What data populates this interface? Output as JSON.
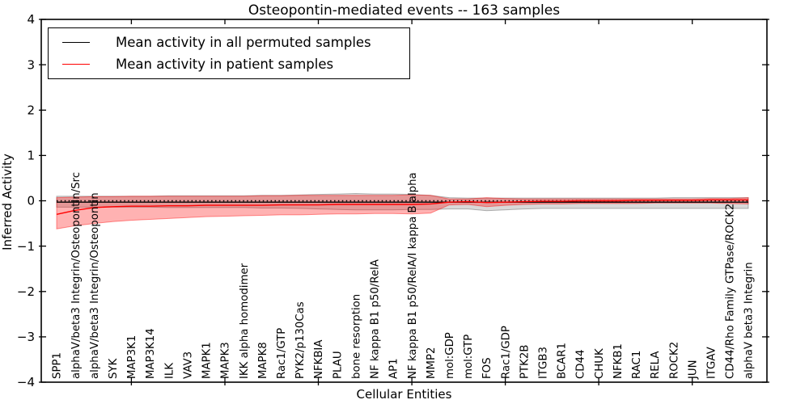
{
  "chart_data": {
    "type": "line",
    "title": "Osteopontin-mediated events -- 163 samples",
    "xlabel": "Cellular Entities",
    "ylabel": "Inferred Activity",
    "ylim": [
      -4,
      4
    ],
    "yticks": [
      4,
      3,
      2,
      1,
      0,
      -1,
      -2,
      -3,
      -4
    ],
    "xtick_indices": [
      4,
      9,
      14,
      19,
      24,
      29,
      34
    ],
    "grid": false,
    "zero_line": {
      "y": 0,
      "style": "dotted",
      "color": "#000000"
    },
    "legend_position": "upper-left",
    "categories": [
      "SPP1",
      "alphaV/beta3 Integrin/Osteopontin/Src",
      "alphaV/beta3 Integrin/Osteopontin",
      "SYK",
      "MAP3K1",
      "MAP3K14",
      "ILK",
      "VAV3",
      "MAPK1",
      "MAPK3",
      "IKK alpha homodimer",
      "MAPK8",
      "Rac1/GTP",
      "PYK2/p130Cas",
      "NFKBIA",
      "PLAU",
      "bone resorption",
      "NF kappa B1 p50/RelA",
      "AP1",
      "NF kappa B1 p50/RelA/I kappa B alpha",
      "MMP2",
      "mol:GDP",
      "mol:GTP",
      "FOS",
      "Rac1/GDP",
      "PTK2B",
      "ITGB3",
      "BCAR1",
      "CD44",
      "CHUK",
      "NFKB1",
      "RAC1",
      "RELA",
      "ROCK2",
      "JUN",
      "ITGAV",
      "CD44/Rho Family GTPase/ROCK2",
      "alphaV beta3 Integrin"
    ],
    "series": [
      {
        "name": "Mean activity in all permuted samples",
        "color": "#000000",
        "band_color": "#000000",
        "band_alpha": 0.15,
        "values": [
          -0.03,
          -0.03,
          -0.03,
          -0.03,
          -0.03,
          -0.03,
          -0.03,
          -0.03,
          -0.03,
          -0.03,
          -0.03,
          -0.03,
          -0.03,
          -0.03,
          -0.03,
          -0.03,
          -0.03,
          -0.03,
          -0.03,
          -0.03,
          -0.03,
          -0.03,
          -0.03,
          -0.03,
          -0.03,
          -0.03,
          -0.03,
          -0.03,
          -0.03,
          -0.03,
          -0.03,
          -0.03,
          -0.03,
          -0.03,
          -0.03,
          -0.03,
          -0.03,
          -0.03
        ],
        "band_upper": [
          0.1,
          0.1,
          0.1,
          0.1,
          0.1,
          0.1,
          0.11,
          0.11,
          0.11,
          0.11,
          0.11,
          0.12,
          0.12,
          0.13,
          0.14,
          0.15,
          0.16,
          0.15,
          0.15,
          0.14,
          0.12,
          0.07,
          0.06,
          0.06,
          0.06,
          0.06,
          0.06,
          0.06,
          0.06,
          0.06,
          0.06,
          0.06,
          0.06,
          0.07,
          0.07,
          0.07,
          0.07,
          0.07
        ],
        "band_lower": [
          -0.14,
          -0.14,
          -0.14,
          -0.14,
          -0.14,
          -0.14,
          -0.15,
          -0.15,
          -0.15,
          -0.15,
          -0.15,
          -0.16,
          -0.16,
          -0.17,
          -0.18,
          -0.19,
          -0.2,
          -0.2,
          -0.2,
          -0.19,
          -0.19,
          -0.18,
          -0.18,
          -0.22,
          -0.2,
          -0.18,
          -0.17,
          -0.17,
          -0.17,
          -0.17,
          -0.17,
          -0.17,
          -0.17,
          -0.17,
          -0.17,
          -0.17,
          -0.17,
          -0.17
        ]
      },
      {
        "name": "Mean activity in patient samples",
        "color": "#ff0000",
        "band_color": "#ff0000",
        "band_alpha": 0.3,
        "values": [
          -0.3,
          -0.21,
          -0.15,
          -0.13,
          -0.12,
          -0.12,
          -0.11,
          -0.11,
          -0.1,
          -0.1,
          -0.1,
          -0.1,
          -0.09,
          -0.09,
          -0.09,
          -0.08,
          -0.08,
          -0.08,
          -0.08,
          -0.08,
          -0.07,
          -0.03,
          -0.02,
          -0.04,
          -0.03,
          -0.02,
          -0.01,
          -0.01,
          0.0,
          0.0,
          0.0,
          0.01,
          0.01,
          0.01,
          0.01,
          0.02,
          0.02,
          0.02
        ],
        "band_upper": [
          0.07,
          0.08,
          0.09,
          0.09,
          0.1,
          0.1,
          0.1,
          0.1,
          0.1,
          0.1,
          0.1,
          0.11,
          0.11,
          0.12,
          0.12,
          0.12,
          0.12,
          0.12,
          0.12,
          0.13,
          0.12,
          0.04,
          0.04,
          0.07,
          0.05,
          0.04,
          0.04,
          0.04,
          0.04,
          0.04,
          0.04,
          0.04,
          0.04,
          0.04,
          0.04,
          0.05,
          0.05,
          0.07
        ],
        "band_lower": [
          -0.62,
          -0.55,
          -0.5,
          -0.46,
          -0.43,
          -0.41,
          -0.39,
          -0.37,
          -0.35,
          -0.34,
          -0.33,
          -0.32,
          -0.31,
          -0.31,
          -0.3,
          -0.29,
          -0.29,
          -0.28,
          -0.28,
          -0.29,
          -0.27,
          -0.09,
          -0.08,
          -0.13,
          -0.1,
          -0.08,
          -0.07,
          -0.07,
          -0.06,
          -0.06,
          -0.06,
          -0.06,
          -0.05,
          -0.05,
          -0.05,
          -0.05,
          -0.06,
          -0.07
        ]
      }
    ]
  }
}
